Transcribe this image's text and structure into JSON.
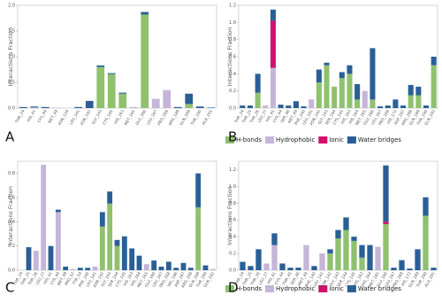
{
  "chart_data": [
    {
      "type": "bar",
      "stacked": true,
      "panel_label": "A",
      "ylabel": "Interactions Fraction",
      "legend": true,
      "categories": [
        "THR_24",
        "HIS_41",
        "CYS_44",
        "MET_49",
        "ASN_119",
        "LEU_141",
        "ASN_142",
        "GLY_143",
        "CYS_145",
        "HIS_163",
        "MET_165",
        "GLU_166",
        "LEU_167",
        "PRO_168",
        "ARG_188",
        "GLN_189",
        "THR_190",
        "ALA_191"
      ],
      "series": [
        {
          "name": "H-bonds",
          "color": "#8fc16f",
          "values": [
            0,
            0,
            0,
            0,
            0,
            0,
            0,
            0.8,
            0.66,
            0.28,
            0,
            1.82,
            0,
            0,
            0,
            0.08,
            0,
            0
          ]
        },
        {
          "name": "Hydrophobic",
          "color": "#c5b5d8",
          "values": [
            0,
            0.01,
            0,
            0.01,
            0,
            0,
            0,
            0,
            0,
            0,
            0.02,
            0,
            0.18,
            0.35,
            0,
            0,
            0,
            0
          ]
        },
        {
          "name": "Ionic",
          "color": "#d1116d",
          "values": [
            0,
            0,
            0,
            0,
            0,
            0,
            0,
            0,
            0,
            0,
            0,
            0,
            0,
            0,
            0,
            0,
            0,
            0
          ]
        },
        {
          "name": "Water bridges",
          "color": "#2a5f96",
          "values": [
            0.02,
            0.02,
            0.02,
            0,
            0,
            0.02,
            0.14,
            0.03,
            0.02,
            0.02,
            0,
            0.05,
            0,
            0,
            0.02,
            0.2,
            0.03,
            0.01
          ]
        }
      ],
      "ylim": [
        0,
        2.0
      ],
      "yticks": [
        {
          "value": 0,
          "label": "0.0"
        },
        0.5,
        {
          "value": 1,
          "label": "1.0"
        },
        1.5,
        {
          "value": 2,
          "label": "2.0"
        }
      ]
    },
    {
      "type": "bar",
      "stacked": true,
      "panel_label": "B",
      "ylabel": "Interactions Fraction",
      "categories": [
        "THR_24",
        "THR_25",
        "THR_26",
        "LEU_27",
        "HIS_41",
        "CYS_44",
        "SER_46",
        "MET_49",
        "PHE_140",
        "LEU_141",
        "ASN_142",
        "GLY_143",
        "SER_144",
        "CYS_145",
        "HIS_163",
        "HIS_164",
        "MET_165",
        "GLU_166",
        "LEU_167",
        "PRO_168",
        "HIS_172",
        "ASP_187",
        "ARG_188",
        "GLN_189",
        "THR_190",
        "GLN_192"
      ],
      "series": [
        {
          "name": "H-bonds",
          "color": "#8fc16f",
          "values": [
            0,
            0,
            0.18,
            0,
            0,
            0,
            0,
            0,
            0,
            0,
            0.3,
            0.5,
            0.25,
            0.35,
            0.4,
            0.1,
            0,
            0.1,
            0,
            0,
            0,
            0,
            0.15,
            0.15,
            0,
            0.5
          ]
        },
        {
          "name": "Hydrophobic",
          "color": "#c5b5d8",
          "values": [
            0,
            0,
            0,
            0.03,
            0.47,
            0,
            0,
            0,
            0,
            0.1,
            0,
            0,
            0,
            0,
            0,
            0,
            0.2,
            0,
            0,
            0,
            0,
            0,
            0,
            0,
            0,
            0
          ]
        },
        {
          "name": "Ionic",
          "color": "#d1116d",
          "values": [
            0,
            0,
            0,
            0,
            0.55,
            0,
            0,
            0,
            0,
            0,
            0,
            0,
            0,
            0,
            0,
            0,
            0,
            0,
            0,
            0,
            0,
            0,
            0,
            0,
            0,
            0
          ]
        },
        {
          "name": "Water bridges",
          "color": "#2a5f96",
          "values": [
            0.03,
            0.03,
            0.22,
            0,
            0.13,
            0.04,
            0.03,
            0.08,
            0.02,
            0,
            0.15,
            0.03,
            0,
            0.07,
            0.1,
            0.18,
            0,
            0.6,
            0.02,
            0.03,
            0.1,
            0.03,
            0.12,
            0.1,
            0.03,
            0.1
          ]
        }
      ],
      "ylim": [
        0,
        1.2
      ],
      "yticks": [
        {
          "value": 0,
          "label": "0.0"
        },
        0.2,
        0.4,
        0.6,
        0.8,
        {
          "value": 1,
          "label": "1.0"
        },
        1.2
      ]
    },
    {
      "type": "bar",
      "stacked": true,
      "panel_label": "C",
      "ylabel": "Interactions Fraction",
      "legend": true,
      "categories": [
        "THR_24",
        "THR_25",
        "THR_26",
        "LEU_27",
        "HIS_41",
        "CYS_44",
        "MET_49",
        "PRO_52",
        "TYR_54",
        "PHE_140",
        "LEU_141",
        "ASN_142",
        "GLY_143",
        "SER_144",
        "CYS_145",
        "HIS_163",
        "HIS_164",
        "MET_165",
        "GLU_166",
        "LEU_167",
        "PRO_168",
        "VAL_186",
        "ASP_187",
        "ARG_188",
        "GLN_189",
        "THR_190",
        "GLN_192"
      ],
      "series": [
        {
          "name": "H-bonds",
          "color": "#8fc16f",
          "values": [
            0,
            0,
            0,
            0,
            0,
            0,
            0,
            0,
            0,
            0,
            0,
            0.36,
            0.55,
            0.2,
            0,
            0,
            0,
            0,
            0,
            0,
            0,
            0,
            0,
            0,
            0.52,
            0,
            0
          ]
        },
        {
          "name": "Hydrophobic",
          "color": "#c5b5d8",
          "values": [
            0,
            0,
            0.16,
            0.87,
            0,
            0.48,
            0,
            0.01,
            0,
            0,
            0.03,
            0,
            0,
            0,
            0,
            0,
            0,
            0.05,
            0,
            0,
            0,
            0,
            0,
            0,
            0,
            0,
            0.01
          ]
        },
        {
          "name": "Ionic",
          "color": "#d1116d",
          "values": [
            0,
            0,
            0,
            0,
            0,
            0,
            0,
            0,
            0,
            0,
            0,
            0,
            0,
            0,
            0,
            0,
            0,
            0,
            0,
            0,
            0,
            0,
            0,
            0,
            0,
            0,
            0
          ]
        },
        {
          "name": "Water bridges",
          "color": "#2a5f96",
          "values": [
            0,
            0.19,
            0,
            0,
            0.2,
            0.02,
            0.03,
            0,
            0.02,
            0.02,
            0,
            0.12,
            0.1,
            0.05,
            0.28,
            0.18,
            0.12,
            0,
            0.08,
            0.03,
            0.07,
            0.02,
            0.06,
            0.02,
            0.28,
            0.04,
            0
          ]
        }
      ],
      "ylim": [
        0,
        0.9
      ],
      "yticks": [
        {
          "value": 0,
          "label": "0.0"
        },
        0.2,
        0.4,
        0.6,
        0.8
      ]
    },
    {
      "type": "bar",
      "stacked": true,
      "panel_label": "D",
      "ylabel": "Interactions Fraction",
      "categories": [
        "THR_24",
        "THR_25",
        "THR_26",
        "LEU_27",
        "HIS_41",
        "CYS_44",
        "THR_45",
        "SER_46",
        "MET_49",
        "PHE_140",
        "LEU_141",
        "ASN_142",
        "GLY_143",
        "SER_144",
        "CYS_145",
        "HIS_163",
        "HIS_164",
        "MET_165",
        "GLU_166",
        "LEU_167",
        "PRO_168",
        "HIS_172",
        "GLN_189",
        "THR_190",
        "ALA_191"
      ],
      "series": [
        {
          "name": "H-bonds",
          "color": "#8fc16f",
          "values": [
            0,
            0,
            0,
            0,
            0,
            0,
            0,
            0,
            0,
            0,
            0,
            0.2,
            0.38,
            0.48,
            0.35,
            0.15,
            0,
            0,
            0.55,
            0,
            0,
            0,
            0,
            0.65,
            0
          ]
        },
        {
          "name": "Hydrophobic",
          "color": "#c5b5d8",
          "values": [
            0,
            0,
            0,
            0.08,
            0.3,
            0,
            0,
            0,
            0.3,
            0,
            0.2,
            0,
            0,
            0,
            0,
            0,
            0,
            0.28,
            0,
            0,
            0,
            0,
            0,
            0,
            0
          ]
        },
        {
          "name": "Ionic",
          "color": "#d1116d",
          "values": [
            0,
            0,
            0,
            0,
            0,
            0,
            0,
            0,
            0,
            0,
            0,
            0,
            0,
            0,
            0,
            0,
            0,
            0,
            0.03,
            0,
            0,
            0,
            0,
            0,
            0
          ]
        },
        {
          "name": "Water bridges",
          "color": "#2a5f96",
          "values": [
            0.1,
            0.05,
            0.25,
            0,
            0.14,
            0.08,
            0.03,
            0.03,
            0,
            0.05,
            0,
            0.05,
            0.1,
            0.15,
            0.05,
            0.15,
            0.3,
            0,
            0.67,
            0.03,
            0.12,
            0.02,
            0.25,
            0.22,
            0.03
          ]
        }
      ],
      "ylim": [
        0,
        1.3
      ],
      "yticks": [
        {
          "value": 0,
          "label": "0.0"
        },
        0.2,
        0.4,
        0.6,
        0.8,
        {
          "value": 1,
          "label": "1.0"
        },
        1.2
      ]
    }
  ]
}
